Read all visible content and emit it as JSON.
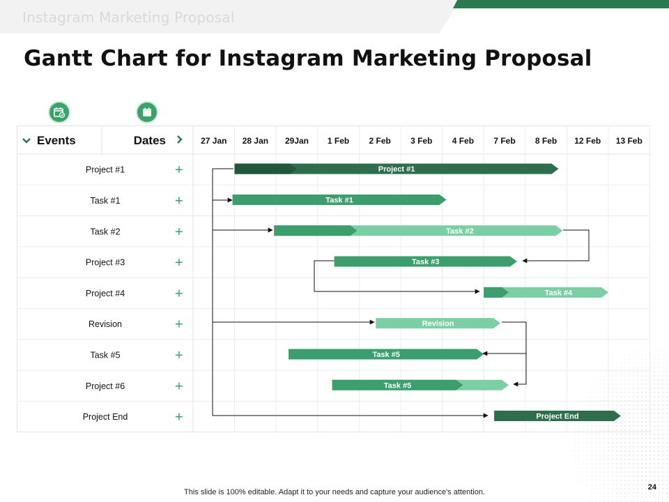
{
  "header": {
    "text": "Instagram Marketing Proposal"
  },
  "title": "Gantt Chart for Instagram Marketing Proposal",
  "icons": [
    "calendar-check-icon",
    "calendar-icon"
  ],
  "table": {
    "events_header": "Events",
    "dates_header": "Dates",
    "dates": [
      "27 Jan",
      "28 Jan",
      "29Jan",
      "1 Feb",
      "2 Feb",
      "3 Feb",
      "4 Feb",
      "7 Feb",
      "8 Feb",
      "12 Feb",
      "13 Feb"
    ],
    "events": [
      "Project #1",
      "Task #1",
      "Task #2",
      "Project #3",
      "Project #4",
      "Revision",
      "Task #5",
      "Project #6",
      "Project End"
    ],
    "row_action_symbol": "+"
  },
  "colors": {
    "dark_green": "#2f6e4c",
    "medium_green": "#3b9e6c",
    "light_green": "#7ccfa4",
    "accent": "#2a7a4f"
  },
  "bars": [
    {
      "row": 0,
      "label": "Project #1",
      "start_col": 1,
      "end_col": 8.8,
      "split_col": 2.5,
      "color": "dark_green",
      "split_color": "darker"
    },
    {
      "row": 1,
      "label": "Task #1",
      "start_col": 0.95,
      "end_col": 6.1,
      "color": "medium_green"
    },
    {
      "row": 2,
      "label": "Task #2",
      "start_col": 1.95,
      "end_col": 8.9,
      "split_col": 3.95,
      "color": "medium_green",
      "split_color": "light_green"
    },
    {
      "row": 3,
      "label": "Task #3",
      "start_col": 3.4,
      "end_col": 7.8,
      "color": "medium_green"
    },
    {
      "row": 4,
      "label": "Task #4",
      "start_col": 7,
      "end_col": 10,
      "split_col": 7.6,
      "color": "medium_green",
      "split_color": "light_green"
    },
    {
      "row": 5,
      "label": "Revision",
      "start_col": 4.4,
      "end_col": 7.4,
      "color": "light_green"
    },
    {
      "row": 6,
      "label": "Task #5",
      "start_col": 2.3,
      "end_col": 7.0,
      "color": "medium_green"
    },
    {
      "row": 7,
      "label": "Task #5",
      "start_col": 3.35,
      "end_col": 7.6,
      "split_col": 6.5,
      "color": "medium_green",
      "split_color": "light_green"
    },
    {
      "row": 8,
      "label": "Project End",
      "start_col": 7.25,
      "end_col": 10.3,
      "color": "dark_green"
    }
  ],
  "footer": {
    "note": "This slide is 100% editable. Adapt it to your needs and capture your audience's attention.",
    "page_number": "24"
  }
}
